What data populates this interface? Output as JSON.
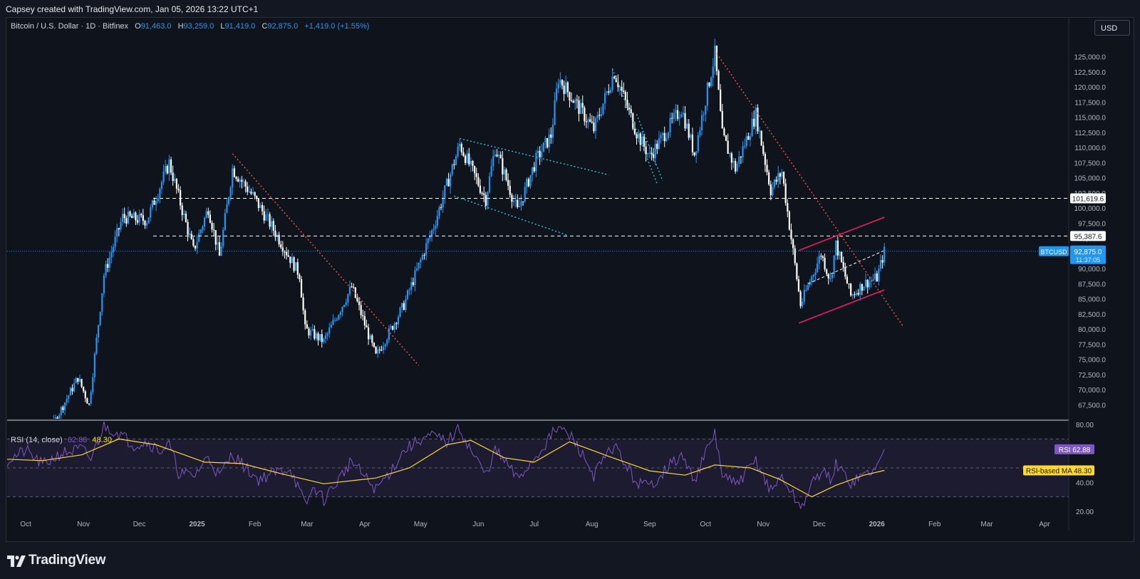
{
  "header": {
    "caption": "Capsey created with TradingView.com, Jan 05, 2026 13:22 UTC+1"
  },
  "legend": {
    "symbol": "Bitcoin / U.S. Dollar · 1D · Bitfinex",
    "o_label": "O",
    "o_value": "91,463.0",
    "h_label": "H",
    "h_value": "93,259.0",
    "l_label": "L",
    "l_value": "91,419.0",
    "c_label": "C",
    "c_value": "92,875.0",
    "change": "+1,419.0 (+1.55%)"
  },
  "currency_button": "USD",
  "brand": "TradingView",
  "colors": {
    "background": "#0f131c",
    "up": "#2196f3",
    "down": "#ffffff",
    "trend_red": "#ef5350",
    "trend_cyan": "#26c6da",
    "channel_pink": "#e91e63",
    "rsi": "#7e57c2",
    "rsi_ma": "#fdd835",
    "price_tag": "#2196f3"
  },
  "chart_data": [
    {
      "type": "candlestick",
      "title": "Bitcoin / U.S. Dollar · 1D · Bitfinex",
      "x_ticks": [
        "Oct",
        "Nov",
        "Dec",
        "2025",
        "Feb",
        "Mar",
        "Apr",
        "May",
        "Jun",
        "Jul",
        "Aug",
        "Sep",
        "Oct",
        "Nov",
        "Dec",
        "2026",
        "Feb",
        "Mar",
        "Apr"
      ],
      "y_ticks": [
        "125,000.0",
        "122,500.0",
        "120,000.0",
        "117,500.0",
        "115,000.0",
        "112,500.0",
        "110,000.0",
        "107,500.0",
        "105,000.0",
        "102,500.0",
        "100,000.0",
        "97,500.0",
        "95,000.0",
        "92,500.0",
        "90,000.0",
        "87,500.0",
        "85,000.0",
        "82,500.0",
        "80,000.0",
        "77,500.0",
        "75,000.0",
        "72,500.0",
        "70,000.0",
        "67,500.0"
      ],
      "ylim": [
        65200,
        128500
      ],
      "x_range": [
        "2024-09-21",
        "2026-04-14"
      ],
      "series_path": [
        [
          "2024-09-21",
          63500
        ],
        [
          "2024-10-10",
          61000
        ],
        [
          "2024-10-29",
          72000
        ],
        [
          "2024-11-04",
          67500
        ],
        [
          "2024-11-12",
          89000
        ],
        [
          "2024-11-22",
          98500
        ],
        [
          "2024-12-05",
          98000
        ],
        [
          "2024-12-17",
          107500
        ],
        [
          "2024-12-30",
          93000
        ],
        [
          "2025-01-07",
          100000
        ],
        [
          "2025-01-13",
          92000
        ],
        [
          "2025-01-20",
          106500
        ],
        [
          "2025-01-31",
          102000
        ],
        [
          "2025-02-10",
          97000
        ],
        [
          "2025-02-25",
          89000
        ],
        [
          "2025-02-28",
          80000
        ],
        [
          "2025-03-10",
          78000
        ],
        [
          "2025-03-25",
          87000
        ],
        [
          "2025-04-07",
          75500
        ],
        [
          "2025-04-22",
          84000
        ],
        [
          "2025-05-08",
          97000
        ],
        [
          "2025-05-22",
          110500
        ],
        [
          "2025-06-05",
          101500
        ],
        [
          "2025-06-10",
          110000
        ],
        [
          "2025-06-22",
          99500
        ],
        [
          "2025-07-02",
          108000
        ],
        [
          "2025-07-10",
          112000
        ],
        [
          "2025-07-14",
          121500
        ],
        [
          "2025-08-02",
          113000
        ],
        [
          "2025-08-13",
          122500
        ],
        [
          "2025-08-25",
          112500
        ],
        [
          "2025-09-01",
          108500
        ],
        [
          "2025-09-18",
          116500
        ],
        [
          "2025-09-25",
          109000
        ],
        [
          "2025-10-06",
          125500
        ],
        [
          "2025-10-10",
          112000
        ],
        [
          "2025-10-17",
          106500
        ],
        [
          "2025-10-28",
          115500
        ],
        [
          "2025-11-05",
          103000
        ],
        [
          "2025-11-11",
          106000
        ],
        [
          "2025-11-21",
          84000
        ],
        [
          "2025-12-02",
          92500
        ],
        [
          "2025-12-07",
          88000
        ],
        [
          "2025-12-10",
          94000
        ],
        [
          "2025-12-18",
          85500
        ],
        [
          "2025-12-25",
          87500
        ],
        [
          "2026-01-01",
          88500
        ],
        [
          "2026-01-05",
          92875
        ]
      ],
      "horizontal_levels": [
        {
          "label": "101,619.6",
          "value": 101619.6
        },
        {
          "label": "95,387.6",
          "value": 95387.6
        }
      ],
      "price_line": {
        "symbol": "BTCUSD",
        "value_label": "92,875.0",
        "countdown": "11:37:05",
        "value": 92875
      },
      "trendlines": [
        {
          "style": "red-dotted",
          "from": [
            "2025-01-20",
            109000
          ],
          "to": [
            "2025-04-30",
            74000
          ]
        },
        {
          "style": "red-dotted",
          "from": [
            "2025-10-06",
            126000
          ],
          "to": [
            "2026-01-15",
            80500
          ]
        },
        {
          "style": "cyan-dotted",
          "from": [
            "2025-05-22",
            111500
          ],
          "to": [
            "2025-08-10",
            105500
          ]
        },
        {
          "style": "cyan-dotted",
          "from": [
            "2025-05-19",
            102000
          ],
          "to": [
            "2025-07-19",
            95500
          ]
        },
        {
          "style": "cyan-dotted",
          "from": [
            "2025-08-12",
            123000
          ],
          "to": [
            "2025-09-05",
            104000
          ]
        },
        {
          "style": "cyan-dotted",
          "from": [
            "2025-08-25",
            115500
          ],
          "to": [
            "2025-09-08",
            104500
          ]
        },
        {
          "style": "pink",
          "from": [
            "2025-11-20",
            93000
          ],
          "to": [
            "2026-01-05",
            98500
          ]
        },
        {
          "style": "pink",
          "from": [
            "2025-11-20",
            81000
          ],
          "to": [
            "2026-01-05",
            86500
          ]
        },
        {
          "style": "white-dashed",
          "from": [
            "2025-11-25",
            87500
          ],
          "to": [
            "2026-01-05",
            93000
          ]
        }
      ]
    },
    {
      "type": "line",
      "title": "RSI (14, close)",
      "rsi_label": "RSI",
      "rsi_value": "62.88",
      "ma_label": "RSI-based MA",
      "ma_value": "48.30",
      "y_ticks": [
        "80.00",
        "40.00",
        "20.00"
      ],
      "bands": [
        70,
        50,
        30
      ],
      "ylim": [
        18,
        82
      ],
      "series": [
        {
          "name": "RSI",
          "path": [
            [
              "2024-09-21",
              55
            ],
            [
              "2024-10-01",
              62
            ],
            [
              "2024-10-10",
              52
            ],
            [
              "2024-10-20",
              60
            ],
            [
              "2024-10-31",
              63
            ],
            [
              "2024-11-05",
              56
            ],
            [
              "2024-11-12",
              79
            ],
            [
              "2024-11-20",
              74
            ],
            [
              "2024-11-28",
              66
            ],
            [
              "2024-12-05",
              68
            ],
            [
              "2024-12-12",
              62
            ],
            [
              "2024-12-17",
              66
            ],
            [
              "2024-12-22",
              47
            ],
            [
              "2024-12-30",
              44
            ],
            [
              "2025-01-07",
              58
            ],
            [
              "2025-01-13",
              44
            ],
            [
              "2025-01-20",
              60
            ],
            [
              "2025-01-27",
              50
            ],
            [
              "2025-02-03",
              42
            ],
            [
              "2025-02-10",
              46
            ],
            [
              "2025-02-20",
              50
            ],
            [
              "2025-02-28",
              24
            ],
            [
              "2025-03-05",
              37
            ],
            [
              "2025-03-10",
              28
            ],
            [
              "2025-03-18",
              42
            ],
            [
              "2025-03-25",
              55
            ],
            [
              "2025-03-31",
              45
            ],
            [
              "2025-04-07",
              35
            ],
            [
              "2025-04-15",
              48
            ],
            [
              "2025-04-22",
              62
            ],
            [
              "2025-05-01",
              70
            ],
            [
              "2025-05-08",
              72
            ],
            [
              "2025-05-15",
              68
            ],
            [
              "2025-05-22",
              77
            ],
            [
              "2025-05-28",
              62
            ],
            [
              "2025-06-05",
              45
            ],
            [
              "2025-06-10",
              62
            ],
            [
              "2025-06-18",
              50
            ],
            [
              "2025-06-22",
              42
            ],
            [
              "2025-07-02",
              58
            ],
            [
              "2025-07-10",
              72
            ],
            [
              "2025-07-14",
              78
            ],
            [
              "2025-07-22",
              70
            ],
            [
              "2025-08-02",
              45
            ],
            [
              "2025-08-13",
              66
            ],
            [
              "2025-08-20",
              50
            ],
            [
              "2025-08-25",
              40
            ],
            [
              "2025-09-01",
              37
            ],
            [
              "2025-09-10",
              50
            ],
            [
              "2025-09-18",
              58
            ],
            [
              "2025-09-25",
              42
            ],
            [
              "2025-10-06",
              74
            ],
            [
              "2025-10-10",
              45
            ],
            [
              "2025-10-17",
              38
            ],
            [
              "2025-10-28",
              55
            ],
            [
              "2025-11-05",
              34
            ],
            [
              "2025-11-11",
              44
            ],
            [
              "2025-11-21",
              22
            ],
            [
              "2025-11-27",
              38
            ],
            [
              "2025-12-02",
              48
            ],
            [
              "2025-12-07",
              42
            ],
            [
              "2025-12-10",
              52
            ],
            [
              "2025-12-18",
              40
            ],
            [
              "2025-12-25",
              45
            ],
            [
              "2026-01-01",
              50
            ],
            [
              "2026-01-05",
              63
            ]
          ]
        },
        {
          "name": "RSI-based MA",
          "path": [
            [
              "2024-09-21",
              56
            ],
            [
              "2024-10-10",
              55
            ],
            [
              "2024-10-31",
              59
            ],
            [
              "2024-11-20",
              70
            ],
            [
              "2024-12-10",
              66
            ],
            [
              "2025-01-05",
              54
            ],
            [
              "2025-01-25",
              53
            ],
            [
              "2025-02-15",
              46
            ],
            [
              "2025-03-10",
              39
            ],
            [
              "2025-04-07",
              43
            ],
            [
              "2025-04-25",
              50
            ],
            [
              "2025-05-15",
              66
            ],
            [
              "2025-05-28",
              69
            ],
            [
              "2025-06-15",
              57
            ],
            [
              "2025-07-01",
              54
            ],
            [
              "2025-07-20",
              68
            ],
            [
              "2025-08-10",
              58
            ],
            [
              "2025-09-01",
              48
            ],
            [
              "2025-09-20",
              45
            ],
            [
              "2025-10-06",
              52
            ],
            [
              "2025-10-25",
              50
            ],
            [
              "2025-11-10",
              42
            ],
            [
              "2025-11-27",
              30
            ],
            [
              "2025-12-10",
              38
            ],
            [
              "2025-12-25",
              45
            ],
            [
              "2026-01-05",
              48.3
            ]
          ]
        }
      ]
    }
  ]
}
